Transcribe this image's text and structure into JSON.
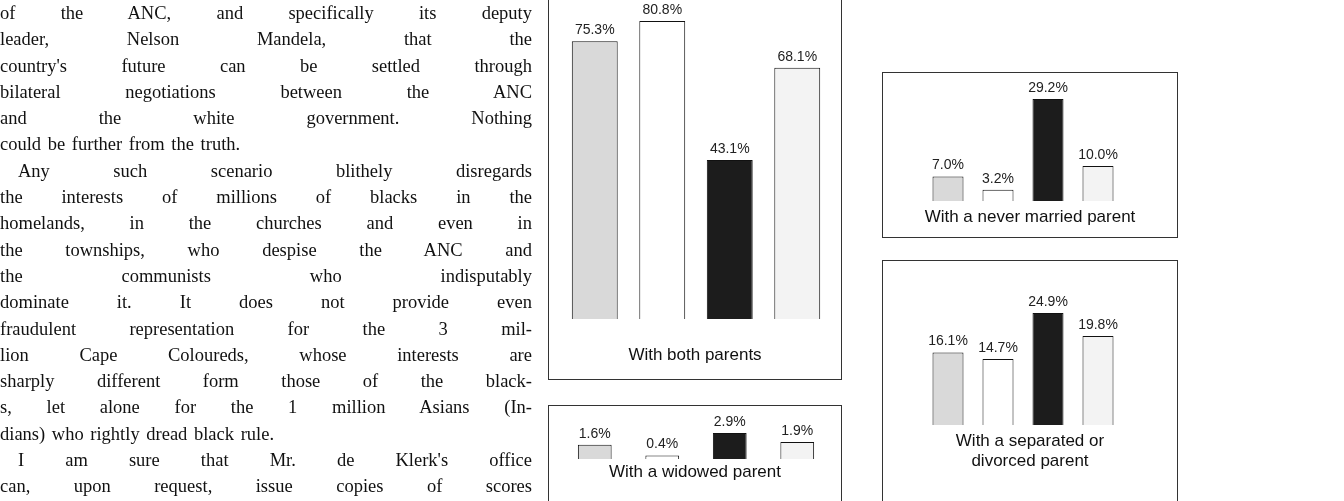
{
  "chart_data": [
    {
      "type": "other",
      "annotations": [
        "of the ANC, and specifically its deputy",
        "leader, Nelson Mandela, that the",
        "country's future can be settled through",
        "bilateral negotiations between the ANC",
        "and the white government. Nothing",
        "could be further from the truth.",
        "Any such scenario blithely disregards",
        "the interests of millions of blacks in the",
        "homelands, in the churches and even in",
        "the townships, who despise the ANC and",
        "the communists who indisputably",
        "dominate it. It does not provide even",
        "fraudulent representation for the 3 mil-",
        "lion Cape Coloureds, whose interests are",
        "sharply different form those of the black-",
        "s, let alone for the 1 million Asians (In-",
        "dians) who rightly dread black rule.",
        "I am sure that Mr. de Klerk's office",
        "can, upon request, issue copies of scores"
      ]
    },
    {
      "type": "bar",
      "title": "With both parents",
      "categories": [
        null,
        null,
        null,
        null
      ],
      "values": [
        75.3,
        80.8,
        43.1,
        68.1
      ],
      "colors": [
        "#d9d9d9",
        "#ffffff",
        "#1c1c1c",
        "#f3f3f3"
      ],
      "value_labels": [
        "75.3%",
        "80.8%",
        "43.1%",
        "68.1%"
      ]
    },
    {
      "type": "bar",
      "title": "With a widowed parent",
      "categories": [
        null,
        null,
        null,
        null
      ],
      "values": [
        1.6,
        0.4,
        2.9,
        1.9
      ],
      "colors": [
        "#d9d9d9",
        "#ffffff",
        "#1c1c1c",
        "#f3f3f3"
      ],
      "value_labels": [
        "1.6%",
        "0.4%",
        "2.9%",
        "1.9%"
      ]
    },
    {
      "type": "bar",
      "title": "With a never married parent",
      "categories": [
        null,
        null,
        null,
        null
      ],
      "values": [
        7.0,
        3.2,
        29.2,
        10.0
      ],
      "colors": [
        "#d9d9d9",
        "#ffffff",
        "#1c1c1c",
        "#f3f3f3"
      ],
      "value_labels": [
        "7.0%",
        "3.2%",
        "29.2%",
        "10.0%"
      ]
    },
    {
      "type": "bar",
      "title": "With a separated or divorced parent",
      "categories": [
        null,
        null,
        null,
        null
      ],
      "values": [
        16.1,
        14.7,
        24.9,
        19.8
      ],
      "colors": [
        "#d9d9d9",
        "#ffffff",
        "#1c1c1c",
        "#f3f3f3"
      ],
      "value_labels": [
        "16.1%",
        "14.7%",
        "24.9%",
        "19.8%"
      ]
    }
  ]
}
